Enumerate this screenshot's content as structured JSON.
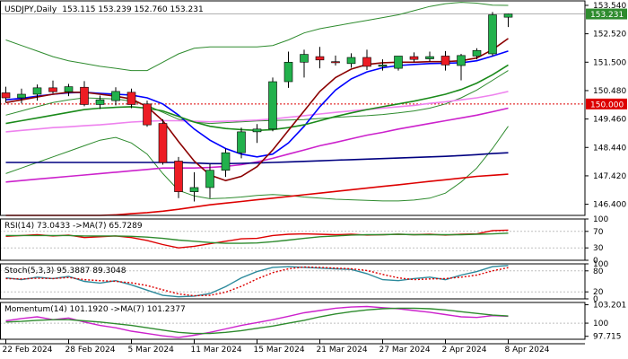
{
  "chart_data": {
    "type": "candlestick",
    "title": "USDJPY,Daily",
    "ohlc_header": "153.115 153.239 152.760 153.231",
    "current_price_label": "153.231",
    "reference_level": 150.0,
    "reference_level_label": "150.000",
    "price_axis": {
      "range": [
        146.0,
        153.7
      ],
      "ticks": [
        "153.540",
        "152.520",
        "151.500",
        "150.480",
        "149.460",
        "148.440",
        "147.420",
        "146.400"
      ]
    },
    "x_tick_labels": [
      "22 Feb 2024",
      "28 Feb 2024",
      "5 Mar 2024",
      "11 Mar 2024",
      "15 Mar 2024",
      "21 Mar 2024",
      "27 Mar 2024",
      "2 Apr 2024",
      "8 Apr 2024"
    ],
    "x_tick_bars": [
      0,
      4,
      8,
      12,
      16,
      20,
      24,
      28,
      32
    ],
    "candles": [
      {
        "o": 150.4,
        "h": 150.62,
        "l": 150.05,
        "c": 150.22
      },
      {
        "o": 150.22,
        "h": 150.55,
        "l": 150.02,
        "c": 150.35
      },
      {
        "o": 150.35,
        "h": 150.7,
        "l": 150.12,
        "c": 150.58
      },
      {
        "o": 150.58,
        "h": 150.84,
        "l": 150.38,
        "c": 150.44
      },
      {
        "o": 150.44,
        "h": 150.72,
        "l": 150.28,
        "c": 150.62
      },
      {
        "o": 150.6,
        "h": 150.82,
        "l": 149.92,
        "c": 149.98
      },
      {
        "o": 149.98,
        "h": 150.3,
        "l": 149.82,
        "c": 150.15
      },
      {
        "o": 150.12,
        "h": 150.6,
        "l": 149.95,
        "c": 150.45
      },
      {
        "o": 150.42,
        "h": 150.55,
        "l": 149.85,
        "c": 149.98
      },
      {
        "o": 150.0,
        "h": 150.12,
        "l": 149.18,
        "c": 149.25
      },
      {
        "o": 149.3,
        "h": 149.45,
        "l": 147.82,
        "c": 147.9
      },
      {
        "o": 147.95,
        "h": 148.1,
        "l": 146.62,
        "c": 146.85
      },
      {
        "o": 146.85,
        "h": 147.55,
        "l": 146.5,
        "c": 147.0
      },
      {
        "o": 147.0,
        "h": 147.85,
        "l": 146.62,
        "c": 147.62
      },
      {
        "o": 147.62,
        "h": 148.4,
        "l": 147.38,
        "c": 148.25
      },
      {
        "o": 148.25,
        "h": 149.15,
        "l": 148.05,
        "c": 149.0
      },
      {
        "o": 149.0,
        "h": 149.28,
        "l": 148.6,
        "c": 149.1
      },
      {
        "o": 149.1,
        "h": 150.95,
        "l": 149.02,
        "c": 150.8
      },
      {
        "o": 150.8,
        "h": 151.88,
        "l": 150.58,
        "c": 151.5
      },
      {
        "o": 151.5,
        "h": 151.95,
        "l": 150.95,
        "c": 151.78
      },
      {
        "o": 151.7,
        "h": 152.05,
        "l": 151.28,
        "c": 151.58
      },
      {
        "o": 151.52,
        "h": 151.74,
        "l": 151.38,
        "c": 151.48
      },
      {
        "o": 151.45,
        "h": 151.82,
        "l": 151.3,
        "c": 151.67
      },
      {
        "o": 151.67,
        "h": 151.95,
        "l": 151.22,
        "c": 151.35
      },
      {
        "o": 151.35,
        "h": 151.6,
        "l": 151.2,
        "c": 151.4
      },
      {
        "o": 151.28,
        "h": 151.72,
        "l": 151.2,
        "c": 151.72
      },
      {
        "o": 151.7,
        "h": 151.85,
        "l": 151.5,
        "c": 151.6
      },
      {
        "o": 151.62,
        "h": 151.88,
        "l": 151.52,
        "c": 151.7
      },
      {
        "o": 151.72,
        "h": 151.9,
        "l": 151.2,
        "c": 151.4
      },
      {
        "o": 151.38,
        "h": 151.8,
        "l": 150.85,
        "c": 151.74
      },
      {
        "o": 151.72,
        "h": 152.0,
        "l": 151.6,
        "c": 151.92
      },
      {
        "o": 151.8,
        "h": 153.3,
        "l": 151.72,
        "c": 153.2
      },
      {
        "o": 153.115,
        "h": 153.239,
        "l": 152.76,
        "c": 153.231
      }
    ],
    "overlays": [
      {
        "name": "bollinger-upper",
        "color": "#2e8b2e",
        "values": [
          152.3,
          152.1,
          151.9,
          151.7,
          151.55,
          151.45,
          151.35,
          151.28,
          151.2,
          151.2,
          151.5,
          151.8,
          152.0,
          152.05,
          152.05,
          152.05,
          152.05,
          152.1,
          152.3,
          152.55,
          152.7,
          152.8,
          152.9,
          153.0,
          153.1,
          153.2,
          153.35,
          153.5,
          153.6,
          153.65,
          153.62,
          153.55,
          153.54
        ]
      },
      {
        "name": "bollinger-middle",
        "color": "#2e8b2e",
        "values": [
          149.6,
          149.75,
          149.9,
          150.05,
          150.15,
          150.22,
          150.2,
          150.18,
          150.1,
          149.95,
          149.7,
          149.45,
          149.35,
          149.3,
          149.33,
          149.36,
          149.39,
          149.41,
          149.42,
          149.44,
          149.48,
          149.52,
          149.55,
          149.58,
          149.62,
          149.68,
          149.75,
          149.85,
          150.0,
          150.22,
          150.5,
          150.85,
          151.2
        ]
      },
      {
        "name": "bollinger-lower",
        "color": "#2e8b2e",
        "values": [
          147.5,
          147.7,
          147.9,
          148.1,
          148.3,
          148.5,
          148.7,
          148.8,
          148.6,
          148.2,
          147.5,
          146.9,
          146.7,
          146.6,
          146.62,
          146.66,
          146.72,
          146.75,
          146.72,
          146.66,
          146.62,
          146.58,
          146.56,
          146.54,
          146.52,
          146.52,
          146.55,
          146.62,
          146.8,
          147.2,
          147.7,
          148.4,
          149.2
        ]
      },
      {
        "name": "moving-average-30",
        "color": "#ee82ee",
        "values": [
          149.0,
          149.05,
          149.1,
          149.15,
          149.18,
          149.22,
          149.25,
          149.3,
          149.35,
          149.38,
          149.4,
          149.4,
          149.38,
          149.36,
          149.38,
          149.4,
          149.42,
          149.46,
          149.52,
          149.58,
          149.64,
          149.7,
          149.75,
          149.8,
          149.85,
          149.9,
          149.95,
          150.02,
          150.08,
          150.15,
          150.22,
          150.32,
          150.45
        ]
      },
      {
        "name": "moving-average-55",
        "color": "#cc22cc",
        "values": [
          147.2,
          147.25,
          147.3,
          147.35,
          147.4,
          147.45,
          147.5,
          147.55,
          147.6,
          147.65,
          147.7,
          147.7,
          147.7,
          147.72,
          147.76,
          147.82,
          147.92,
          148.05,
          148.2,
          148.35,
          148.5,
          148.62,
          148.75,
          148.88,
          148.98,
          149.1,
          149.2,
          149.3,
          149.4,
          149.5,
          149.6,
          149.72,
          149.85
        ]
      },
      {
        "name": "moving-average-100",
        "color": "#000080",
        "values": [
          147.9,
          147.9,
          147.9,
          147.9,
          147.9,
          147.9,
          147.9,
          147.9,
          147.9,
          147.9,
          147.9,
          147.9,
          147.88,
          147.86,
          147.86,
          147.87,
          147.88,
          147.9,
          147.92,
          147.94,
          147.96,
          147.98,
          148.0,
          148.02,
          148.04,
          148.06,
          148.08,
          148.1,
          148.12,
          148.15,
          148.18,
          148.22,
          148.25
        ]
      },
      {
        "name": "moving-average-200",
        "color": "#dd0000",
        "values": [
          146.0,
          146.0,
          146.0,
          146.0,
          146.0,
          146.0,
          146.0,
          146.02,
          146.06,
          146.1,
          146.15,
          146.22,
          146.3,
          146.38,
          146.44,
          146.5,
          146.56,
          146.62,
          146.68,
          146.74,
          146.8,
          146.86,
          146.92,
          146.98,
          147.04,
          147.1,
          147.16,
          147.22,
          147.28,
          147.34,
          147.4,
          147.44,
          147.48
        ]
      },
      {
        "name": "moving-average-fast",
        "color": "#0000ff",
        "values": [
          150.15,
          150.2,
          150.28,
          150.35,
          150.4,
          150.42,
          150.38,
          150.35,
          150.32,
          150.22,
          150.0,
          149.6,
          149.1,
          148.7,
          148.4,
          148.2,
          148.1,
          148.2,
          148.6,
          149.2,
          149.9,
          150.5,
          150.9,
          151.15,
          151.3,
          151.38,
          151.42,
          151.45,
          151.46,
          151.48,
          151.55,
          151.72,
          151.9
        ]
      },
      {
        "name": "moving-average-mid",
        "color": "#1a8a1a",
        "values": [
          149.3,
          149.4,
          149.5,
          149.6,
          149.7,
          149.8,
          149.85,
          149.88,
          149.9,
          149.85,
          149.75,
          149.55,
          149.35,
          149.2,
          149.12,
          149.08,
          149.05,
          149.08,
          149.15,
          149.25,
          149.4,
          149.55,
          149.68,
          149.8,
          149.9,
          150.0,
          150.1,
          150.22,
          150.35,
          150.52,
          150.75,
          151.05,
          151.4
        ]
      },
      {
        "name": "moving-average-short",
        "color": "#8b0000",
        "values": [
          150.05,
          150.15,
          150.25,
          150.35,
          150.42,
          150.42,
          150.35,
          150.28,
          150.18,
          149.9,
          149.4,
          148.65,
          147.95,
          147.45,
          147.25,
          147.4,
          147.75,
          148.35,
          149.05,
          149.75,
          150.45,
          150.95,
          151.25,
          151.42,
          151.48,
          151.5,
          151.5,
          151.52,
          151.52,
          151.55,
          151.65,
          151.95,
          152.35
        ]
      }
    ],
    "indicators": [
      {
        "panel": "rsi",
        "label": "RSI(14) 73.0433 ->MA(7) 65.7289",
        "range": [
          0,
          100
        ],
        "ticks": [
          100,
          70,
          30,
          0
        ],
        "ref_lines": [
          70,
          30
        ],
        "series": [
          {
            "name": "RSI(14)",
            "color": "#dd0000",
            "values": [
              58,
              60,
              62,
              59,
              61,
              55,
              57,
              59,
              55,
              48,
              38,
              30,
              34,
              40,
              46,
              52,
              53,
              60,
              63,
              64,
              63,
              62,
              63,
              61,
              62,
              63,
              62,
              63,
              61,
              63,
              64,
              72,
              73
            ]
          },
          {
            "name": "MA(7)",
            "color": "#2e8b2e",
            "values": [
              60,
              60,
              60,
              60,
              60,
              59,
              59,
              59,
              58,
              56,
              53,
              49,
              46,
              43,
              41,
              41,
              42,
              45,
              49,
              53,
              57,
              59,
              61,
              62,
              62,
              63,
              62,
              62,
              62,
              62,
              63,
              64,
              65.7
            ]
          }
        ]
      },
      {
        "panel": "stochastic",
        "label": "Stoch(5,3,3) 95.3887 89.3048",
        "range": [
          0,
          100
        ],
        "ticks": [
          100,
          80,
          20,
          0
        ],
        "ref_lines": [
          80,
          20
        ],
        "series": [
          {
            "name": "Stoch(5,3,3)",
            "color": "#2c8a9c",
            "values": [
              60,
              55,
              62,
              58,
              64,
              50,
              45,
              52,
              40,
              25,
              10,
              6,
              8,
              15,
              35,
              60,
              78,
              90,
              92,
              90,
              88,
              86,
              84,
              72,
              55,
              52,
              58,
              62,
              55,
              68,
              78,
              92,
              95.4
            ]
          },
          {
            "name": "Signal",
            "color": "#dd0000",
            "values": [
              58,
              57,
              59,
              58,
              61,
              55,
              52,
              50,
              46,
              38,
              26,
              14,
              9,
              10,
              19,
              36,
              57,
              75,
              86,
              91,
              90,
              88,
              86,
              81,
              70,
              60,
              55,
              57,
              58,
              62,
              68,
              80,
              89.3
            ]
          }
        ]
      },
      {
        "panel": "momentum",
        "label": "Momentum(14) 101.1920 ->MA(7) 101.2377",
        "range": [
          97.2,
          103.6
        ],
        "ticks": [
          103.201,
          100,
          97.715
        ],
        "ref_lines": [
          100
        ],
        "series": [
          {
            "name": "Momentum(14)",
            "color": "#cc22cc",
            "values": [
              100.4,
              100.8,
              101.1,
              100.6,
              100.9,
              100.2,
              99.6,
              99.2,
              98.6,
              98.2,
              97.8,
              97.5,
              97.9,
              98.4,
              99.0,
              99.6,
              100.1,
              100.6,
              101.2,
              101.8,
              102.2,
              102.6,
              102.8,
              102.9,
              102.7,
              102.5,
              102.2,
              101.9,
              101.5,
              101.1,
              101.0,
              101.3,
              101.2
            ]
          },
          {
            "name": "MA(7)",
            "color": "#2e8b2e",
            "values": [
              100.2,
              100.3,
              100.5,
              100.6,
              100.6,
              100.4,
              100.2,
              99.9,
              99.6,
              99.2,
              98.8,
              98.4,
              98.2,
              98.2,
              98.4,
              98.7,
              99.1,
              99.5,
              100.0,
              100.5,
              101.1,
              101.6,
              102.0,
              102.3,
              102.5,
              102.6,
              102.6,
              102.5,
              102.3,
              102.0,
              101.7,
              101.4,
              101.24
            ]
          }
        ]
      }
    ]
  },
  "colors": {
    "bull": "#22b14c",
    "bear": "#ed1c24",
    "grid": "#bfbfbf",
    "axis": "#000000",
    "current_price_bg": "#2e8b2e",
    "reference_bg": "#dd0000"
  }
}
